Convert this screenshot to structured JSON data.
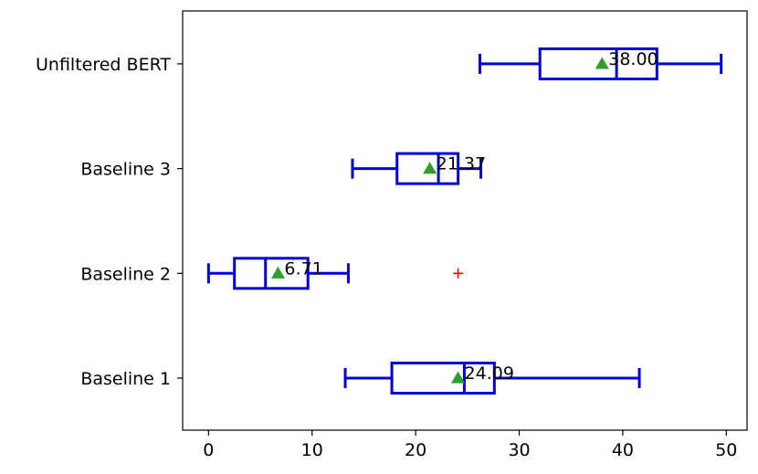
{
  "chart_data": {
    "type": "boxplot",
    "orientation": "horizontal",
    "title": "",
    "xlabel": "",
    "ylabel": "",
    "xlim": [
      -2.5,
      52
    ],
    "xticks": [
      0,
      10,
      20,
      30,
      40,
      50
    ],
    "categories": [
      "Baseline 1",
      "Baseline 2",
      "Baseline 3",
      "Unfiltered BERT"
    ],
    "boxes": [
      {
        "category": "Baseline 1",
        "whisker_low": 13.2,
        "q1": 17.7,
        "median": 24.7,
        "q3": 27.6,
        "whisker_high": 41.6,
        "mean": 24.09,
        "mean_label": "24.09",
        "outliers": []
      },
      {
        "category": "Baseline 2",
        "whisker_low": 0.0,
        "q1": 2.5,
        "median": 5.5,
        "q3": 9.6,
        "whisker_high": 13.5,
        "mean": 6.71,
        "mean_label": "6.71",
        "outliers": [
          24.1
        ]
      },
      {
        "category": "Baseline 3",
        "whisker_low": 13.9,
        "q1": 18.2,
        "median": 22.2,
        "q3": 24.1,
        "whisker_high": 26.3,
        "mean": 21.37,
        "mean_label": "21.37",
        "outliers": []
      },
      {
        "category": "Unfiltered BERT",
        "whisker_low": 26.2,
        "q1": 32.0,
        "median": 39.4,
        "q3": 43.3,
        "whisker_high": 49.5,
        "mean": 38.0,
        "mean_label": "38.00",
        "outliers": []
      }
    ],
    "colors": {
      "box": "#0000dd",
      "mean_marker": "#2ca02c",
      "outlier": "#ff0000"
    },
    "grid": false,
    "legend": "none"
  }
}
